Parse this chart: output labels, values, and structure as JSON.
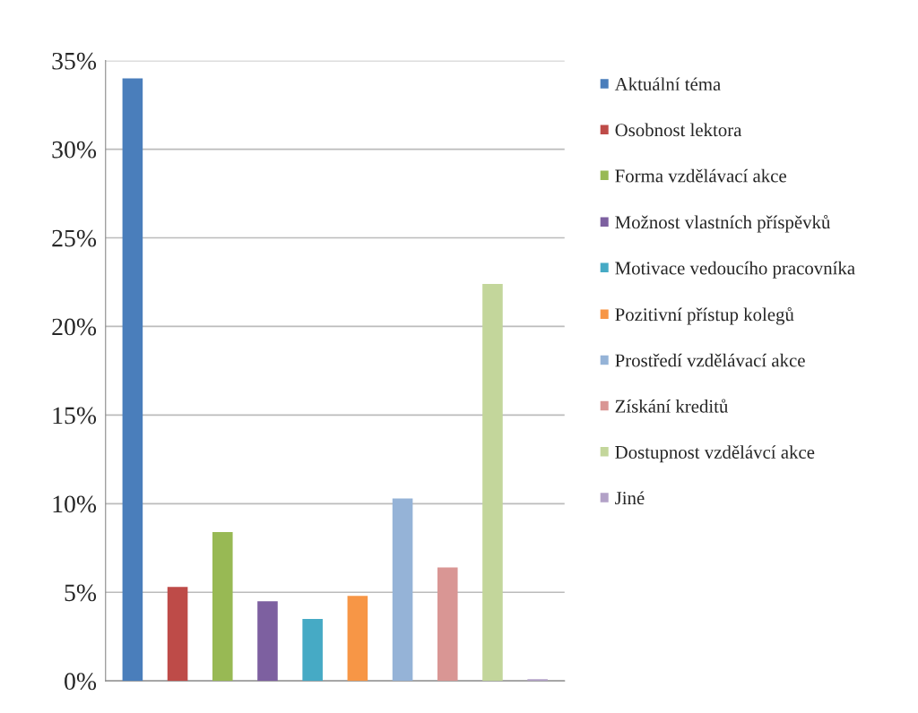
{
  "chart_data": {
    "type": "bar",
    "categories": [
      null,
      null,
      null,
      null,
      null,
      null,
      null,
      null,
      null,
      null
    ],
    "series": [
      {
        "name": "Aktuální téma",
        "color": "#4a7ebb",
        "values": [
          34,
          null,
          null,
          null,
          null,
          null,
          null,
          null,
          null,
          null
        ]
      },
      {
        "name": "Osobnost lektora",
        "color": "#be4b48",
        "values": [
          null,
          5.3,
          null,
          null,
          null,
          null,
          null,
          null,
          null,
          null
        ]
      },
      {
        "name": "Forma vzdělávací akce",
        "color": "#98b954",
        "values": [
          null,
          null,
          8.4,
          null,
          null,
          null,
          null,
          null,
          null,
          null
        ]
      },
      {
        "name": "Možnost vlastních příspěvků",
        "color": "#7d60a0",
        "values": [
          null,
          null,
          null,
          4.5,
          null,
          null,
          null,
          null,
          null,
          null
        ]
      },
      {
        "name": "Motivace vedoucího pracovníka",
        "color": "#46aac5",
        "values": [
          null,
          null,
          null,
          null,
          3.5,
          null,
          null,
          null,
          null,
          null
        ]
      },
      {
        "name": "Pozitivní přístup kolegů",
        "color": "#f79646",
        "values": [
          null,
          null,
          null,
          null,
          null,
          4.8,
          null,
          null,
          null,
          null
        ]
      },
      {
        "name": "Prostředí vzdělávací akce",
        "color": "#95b3d7",
        "values": [
          null,
          null,
          null,
          null,
          null,
          null,
          10.3,
          null,
          null,
          null
        ]
      },
      {
        "name": "Získání kreditů",
        "color": "#d99694",
        "values": [
          null,
          null,
          null,
          null,
          null,
          null,
          null,
          6.4,
          null,
          null
        ]
      },
      {
        "name": "Dostupnost vzdělávcí akce",
        "color": "#c3d69b",
        "values": [
          null,
          null,
          null,
          null,
          null,
          null,
          null,
          null,
          22.4,
          null
        ]
      },
      {
        "name": "Jiné",
        "color": "#b2a1c7",
        "values": [
          null,
          null,
          null,
          null,
          null,
          null,
          null,
          null,
          null,
          0.1
        ]
      }
    ],
    "ylim": [
      0,
      35
    ],
    "yticks": [
      {
        "value": 0,
        "label": "0%"
      },
      {
        "value": 5,
        "label": "5%"
      },
      {
        "value": 10,
        "label": "10%"
      },
      {
        "value": 15,
        "label": "15%"
      },
      {
        "value": 20,
        "label": "20%"
      },
      {
        "value": 25,
        "label": "25%"
      },
      {
        "value": 30,
        "label": "30%"
      },
      {
        "value": 35,
        "label": "35%"
      }
    ],
    "grid": "y",
    "legend": "right"
  }
}
